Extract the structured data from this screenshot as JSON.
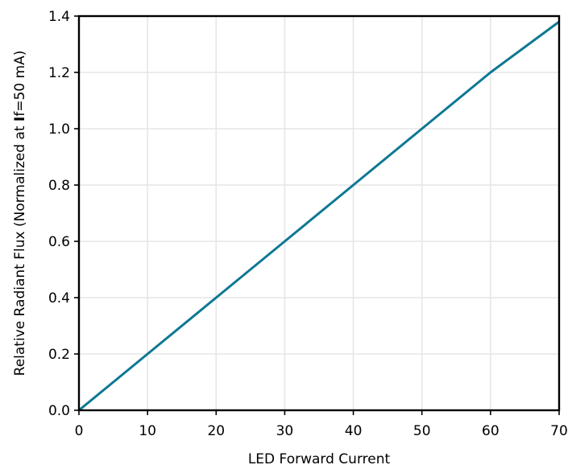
{
  "chart_data": {
    "type": "line",
    "title": "",
    "xlabel": "LED Forward Current",
    "ylabel_parts": {
      "before": "Relative Radiant Flux (Normalized at ",
      "bold": "I",
      "after": "f=50 mA)"
    },
    "xlim": [
      0,
      70
    ],
    "ylim": [
      0,
      1.4
    ],
    "xticks": [
      0,
      10,
      20,
      30,
      40,
      50,
      60,
      70
    ],
    "xtick_labels": [
      "0",
      "10",
      "20",
      "30",
      "40",
      "50",
      "60",
      "70"
    ],
    "yticks": [
      0,
      0.2,
      0.4,
      0.6,
      0.8,
      1.0,
      1.2,
      1.4
    ],
    "ytick_labels": [
      "0.0",
      "0.2",
      "0.4",
      "0.6",
      "0.8",
      "1.0",
      "1.2",
      "1.4"
    ],
    "grid": true,
    "series": [
      {
        "color": "#0e7893",
        "x": [
          0,
          10,
          20,
          30,
          40,
          50,
          60,
          70
        ],
        "y": [
          0,
          0.2,
          0.4,
          0.6,
          0.8,
          1.0,
          1.2,
          1.38
        ]
      }
    ]
  }
}
